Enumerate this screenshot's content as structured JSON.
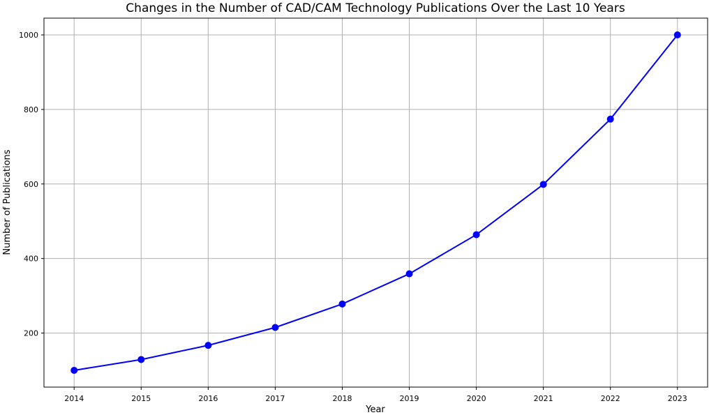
{
  "colors": {
    "line": "#0000ff",
    "marker": "#0000ff",
    "grid": "#b0b0b0",
    "axis": "#000000",
    "background": "#ffffff"
  },
  "chart_data": {
    "type": "line",
    "title": "Changes in the Number of CAD/CAM Technology Publications Over the Last 10 Years",
    "xlabel": "Year",
    "ylabel": "Number of Publications",
    "x": [
      2014,
      2015,
      2016,
      2017,
      2018,
      2019,
      2020,
      2021,
      2022,
      2023
    ],
    "series": [
      {
        "values": [
          100,
          129,
          167,
          215,
          278,
          359,
          464,
          599,
          774,
          1000
        ],
        "marker": "circle"
      }
    ],
    "xticks": [
      "2014",
      "2015",
      "2016",
      "2017",
      "2018",
      "2019",
      "2020",
      "2021",
      "2022",
      "2023"
    ],
    "yticks": [
      200,
      400,
      600,
      800,
      1000
    ],
    "ylim": [
      55,
      1045
    ],
    "xlim": [
      2013.55,
      2023.45
    ],
    "grid": true,
    "legend": "none"
  }
}
